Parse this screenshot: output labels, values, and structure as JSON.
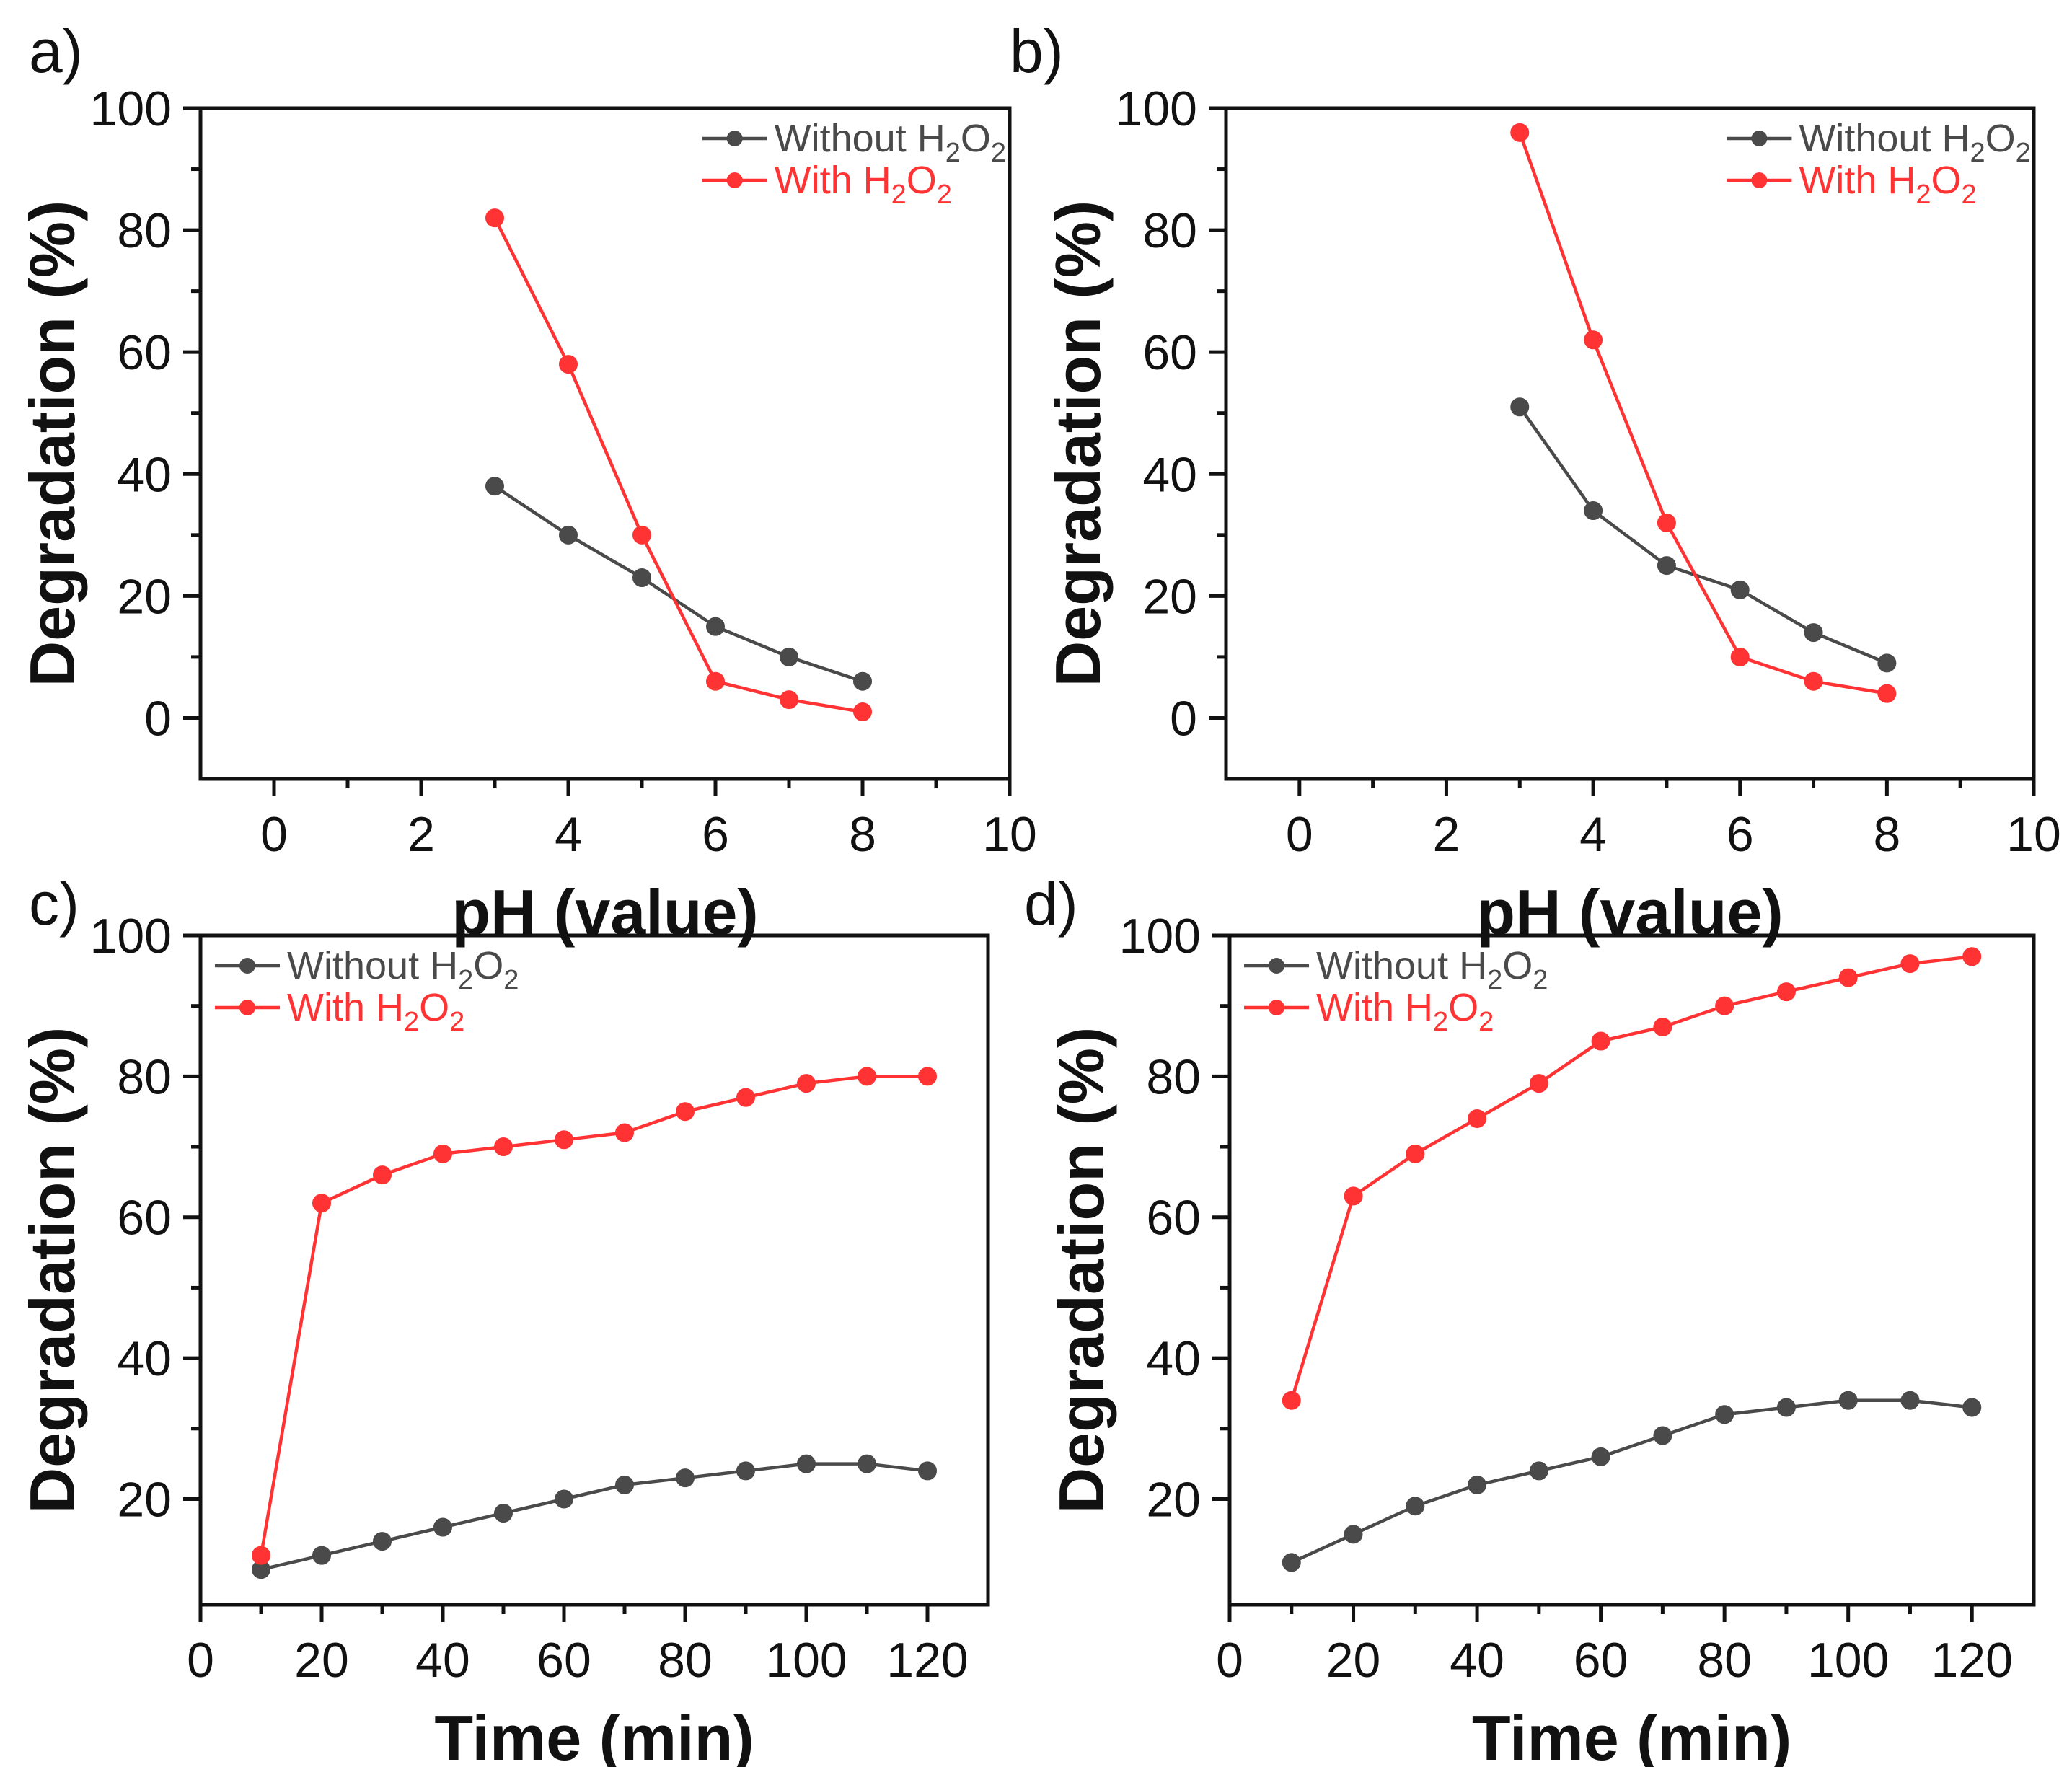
{
  "colors": {
    "without": "#4a4a4a",
    "with": "#ff3333",
    "axis": "#111111"
  },
  "chart_data": [
    {
      "type": "line",
      "panel_label": "a)",
      "xlabel": "pH (value)",
      "ylabel": "Degradation (%)",
      "xlim": [
        -1,
        10
      ],
      "ylim": [
        -10,
        100
      ],
      "xticks": [
        0,
        2,
        4,
        6,
        8,
        10
      ],
      "yticks": [
        0,
        20,
        40,
        60,
        80,
        100
      ],
      "legend_position": "top-right",
      "series": [
        {
          "name": "Without H2O2",
          "label": {
            "pre": "Without H",
            "s1": "2",
            "mid": "O",
            "s2": "2"
          },
          "color": "#4a4a4a",
          "x": [
            3,
            4,
            5,
            6,
            7,
            8
          ],
          "values": [
            38,
            30,
            23,
            15,
            10,
            6
          ]
        },
        {
          "name": "With H2O2",
          "label": {
            "pre": "With H",
            "s1": "2",
            "mid": "O",
            "s2": "2"
          },
          "color": "#ff3333",
          "x": [
            3,
            4,
            5,
            6,
            7,
            8
          ],
          "values": [
            82,
            58,
            30,
            6,
            3,
            1
          ]
        }
      ]
    },
    {
      "type": "line",
      "panel_label": "b)",
      "xlabel": "pH (value)",
      "ylabel": "Degradation (%)",
      "xlim": [
        -1,
        10
      ],
      "ylim": [
        -10,
        100
      ],
      "xticks": [
        0,
        2,
        4,
        6,
        8,
        10
      ],
      "yticks": [
        0,
        20,
        40,
        60,
        80,
        100
      ],
      "legend_position": "top-right",
      "series": [
        {
          "name": "Without H2O2",
          "label": {
            "pre": "Without H",
            "s1": "2",
            "mid": "O",
            "s2": "2"
          },
          "color": "#4a4a4a",
          "x": [
            3,
            4,
            5,
            6,
            7,
            8
          ],
          "values": [
            51,
            34,
            25,
            21,
            14,
            9
          ]
        },
        {
          "name": "With H2O2",
          "label": {
            "pre": "With H",
            "s1": "2",
            "mid": "O",
            "s2": "2"
          },
          "color": "#ff3333",
          "x": [
            3,
            4,
            5,
            6,
            7,
            8
          ],
          "values": [
            96,
            62,
            32,
            10,
            6,
            4
          ]
        }
      ]
    },
    {
      "type": "line",
      "panel_label": "c)",
      "xlabel": "Time (min)",
      "ylabel": "Degradation (%)",
      "xlim": [
        0,
        130
      ],
      "ylim": [
        5,
        100
      ],
      "xticks": [
        0,
        20,
        40,
        60,
        80,
        100,
        120
      ],
      "yticks": [
        20,
        40,
        60,
        80,
        100
      ],
      "legend_position": "top-left",
      "series": [
        {
          "name": "Without H2O2",
          "label": {
            "pre": "Without H",
            "s1": "2",
            "mid": "O",
            "s2": "2"
          },
          "color": "#4a4a4a",
          "x": [
            10,
            20,
            30,
            40,
            50,
            60,
            70,
            80,
            90,
            100,
            110,
            120
          ],
          "values": [
            10,
            12,
            14,
            16,
            18,
            20,
            22,
            23,
            24,
            25,
            25,
            24
          ]
        },
        {
          "name": "With H2O2",
          "label": {
            "pre": "With H",
            "s1": "2",
            "mid": "O",
            "s2": "2"
          },
          "color": "#ff3333",
          "x": [
            10,
            20,
            30,
            40,
            50,
            60,
            70,
            80,
            90,
            100,
            110,
            120
          ],
          "values": [
            12,
            62,
            66,
            69,
            70,
            71,
            72,
            75,
            77,
            79,
            80,
            80
          ]
        }
      ]
    },
    {
      "type": "line",
      "panel_label": "d)",
      "xlabel": "Time (min)",
      "ylabel": "Degradation (%)",
      "xlim": [
        0,
        130
      ],
      "ylim": [
        5,
        100
      ],
      "xticks": [
        0,
        20,
        40,
        60,
        80,
        100,
        120
      ],
      "yticks": [
        20,
        40,
        60,
        80,
        100
      ],
      "legend_position": "top-left",
      "series": [
        {
          "name": "Without H2O2",
          "label": {
            "pre": "Without H",
            "s1": "2",
            "mid": "O",
            "s2": "2"
          },
          "color": "#4a4a4a",
          "x": [
            10,
            20,
            30,
            40,
            50,
            60,
            70,
            80,
            90,
            100,
            110,
            120
          ],
          "values": [
            11,
            15,
            19,
            22,
            24,
            26,
            29,
            32,
            33,
            34,
            34,
            33
          ]
        },
        {
          "name": "With H2O2",
          "label": {
            "pre": "With H",
            "s1": "2",
            "mid": "O",
            "s2": "2"
          },
          "color": "#ff3333",
          "x": [
            10,
            20,
            30,
            40,
            50,
            60,
            70,
            80,
            90,
            100,
            110,
            120
          ],
          "values": [
            34,
            63,
            69,
            74,
            79,
            85,
            87,
            90,
            92,
            94,
            96,
            97
          ]
        }
      ]
    }
  ]
}
